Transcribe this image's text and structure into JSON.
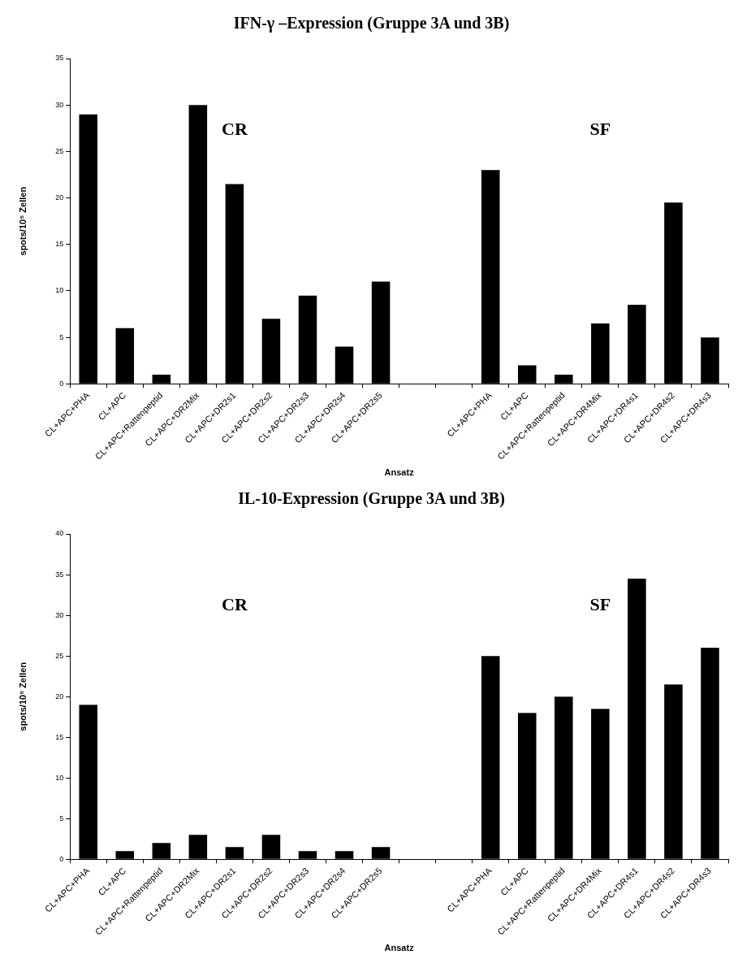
{
  "chart_data": [
    {
      "type": "bar",
      "title": "IFN-γ –Expression (Gruppe 3A und 3B)",
      "xlabel": "Ansatz",
      "ylabel": "spots/10⁵ Zellen",
      "categories": [
        "CL+APC+PHA",
        "CL+APC",
        "CL+APC+Rattenpeptid",
        "CL+APC+DR2Mix",
        "CL+APC+DR2s1",
        "CL+APC+DR2s2",
        "CL+APC+DR2s3",
        "CL+APC+DR2s4",
        "CL+APC+DR2s5",
        null,
        null,
        "CL+APC+PHA",
        "CL+APC",
        "CL+APC+Rattenpeptid",
        "CL+APC+DR4Mix",
        "CL+APC+DR4s1",
        "CL+APC+DR4s2",
        "CL+APC+DR4s3"
      ],
      "values": [
        29,
        6,
        1,
        30,
        21.5,
        7,
        9.5,
        4,
        11,
        null,
        null,
        23,
        2,
        1,
        6.5,
        8.5,
        19.5,
        5
      ],
      "color": "#000000",
      "ylim": [
        0,
        35
      ],
      "yticks": [
        0,
        5,
        10,
        15,
        20,
        25,
        30,
        35
      ],
      "grid": false,
      "legend": false,
      "annotations": [
        "CR",
        "SF"
      ]
    },
    {
      "type": "bar",
      "title": "IL-10-Expression (Gruppe 3A und 3B)",
      "xlabel": "Ansatz",
      "ylabel": "spots/10⁵ Zellen",
      "categories": [
        "CL+APC+PHA",
        "CL+APC",
        "CL+APC+Rattenpeptid",
        "CL+APC+DR2Mix",
        "CL+APC+DR2s1",
        "CL+APC+DR2s2",
        "CL+APC+DR2s3",
        "CL+APC+DR2s4",
        "CL+APC+DR2s5",
        null,
        null,
        "CL+APC+PHA",
        "CL+APC",
        "CL+APC+Rattenpeptid",
        "CL+APC+DR4Mix",
        "CL+APC+DR4s1",
        "CL+APC+DR4s2",
        "CL+APC+DR4s3"
      ],
      "values": [
        19,
        1,
        2,
        3,
        1.5,
        3,
        1,
        1,
        1.5,
        null,
        null,
        25,
        18,
        20,
        18.5,
        34.5,
        21.5,
        26
      ],
      "color": "#000000",
      "ylim": [
        0,
        40
      ],
      "yticks": [
        0,
        5,
        10,
        15,
        20,
        25,
        30,
        35,
        40
      ],
      "grid": false,
      "legend": false,
      "annotations": [
        "CR",
        "SF"
      ]
    }
  ]
}
